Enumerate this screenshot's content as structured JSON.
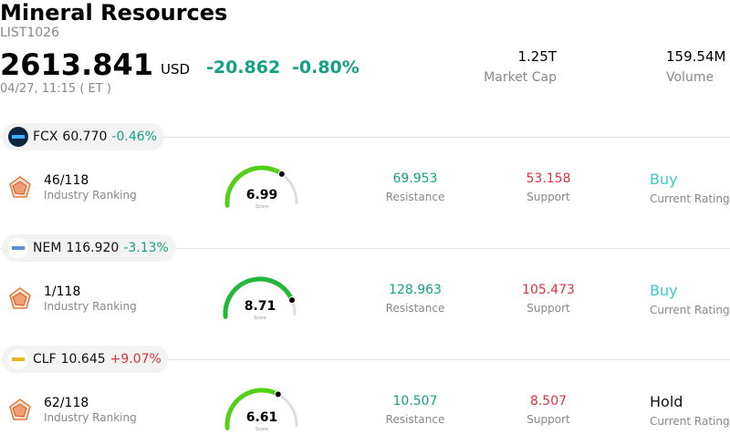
{
  "header": {
    "title": "Mineral Resources",
    "code": "LIST1026",
    "price": "2613.841",
    "currency": "USD",
    "change": "-20.862",
    "change_percent": "-0.80%",
    "datetime": "04/27, 11:15 ( ET )",
    "market_cap": "1.25T",
    "market_cap_label": "Market Cap",
    "volume": "159.54M",
    "volume_label": "Volume"
  },
  "stocks": [
    {
      "ticker": "FCX",
      "price": "60.770",
      "change_percent": "-0.46%",
      "change_color": "#14a085",
      "logo_color": "#0a2540",
      "rank": "46/118",
      "rank_label": "Industry Ranking",
      "score": 6.99,
      "score_label": "Score",
      "gauge_color": "#52d017",
      "resistance": "69.953",
      "resistance_label": "Resistance",
      "support": "53.158",
      "support_label": "Support",
      "rating": "Buy",
      "rating_color": "#3cc8c8",
      "rating_label": "Current Rating"
    },
    {
      "ticker": "NEM",
      "price": "116.920",
      "change_percent": "-3.13%",
      "change_color": "#14a085",
      "logo_color": "#5b8fd6",
      "rank": "1/118",
      "rank_label": "Industry Ranking",
      "score": 8.71,
      "score_label": "Score",
      "gauge_color": "#22b83a",
      "resistance": "128.963",
      "resistance_label": "Resistance",
      "support": "105.473",
      "support_label": "Support",
      "rating": "Buy",
      "rating_color": "#3cc8c8",
      "rating_label": "Current Rating"
    },
    {
      "ticker": "CLF",
      "price": "10.645",
      "change_percent": "+9.07%",
      "change_color": "#e0313f",
      "logo_color": "#e8b820",
      "rank": "62/118",
      "rank_label": "Industry Ranking",
      "score": 6.61,
      "score_label": "Score",
      "gauge_color": "#52d017",
      "resistance": "10.507",
      "resistance_label": "Resistance",
      "support": "8.507",
      "support_label": "Support",
      "rating": "Hold",
      "rating_color": "#111111",
      "rating_label": "Current Rating"
    }
  ]
}
